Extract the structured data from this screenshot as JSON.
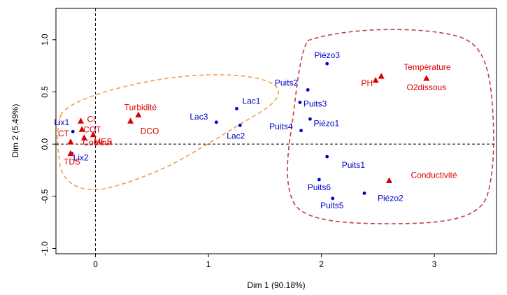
{
  "chart_data": {
    "type": "scatter",
    "title": "",
    "xlabel": "Dim 1 (90.18%)",
    "ylabel": "Dim 2 (5.49%)",
    "xlim": [
      -0.35,
      3.55
    ],
    "ylim": [
      -1.05,
      1.3
    ],
    "x_ticks": [
      0,
      1,
      2,
      3
    ],
    "x_tick_labels": [
      "0",
      "1",
      "2",
      "3"
    ],
    "y_ticks": [
      -1.0,
      -0.5,
      0.0,
      0.5,
      1.0
    ],
    "y_tick_labels": [
      "-1.0",
      "-0.5",
      "0.0",
      "0.5",
      "1.0"
    ],
    "grid": false,
    "reference_lines": {
      "x": 0,
      "y": 0,
      "style": "dashed"
    },
    "colors": {
      "sites": "#0000cc",
      "variables": "#dd0000",
      "group_left": "#f0a050",
      "group_right": "#c04040"
    },
    "series": [
      {
        "marker": "circle",
        "color": "#0000cc",
        "points": [
          {
            "label": "Lix1",
            "x": -0.2,
            "y": 0.12
          },
          {
            "label": "Lix2",
            "x": -0.21,
            "y": -0.09
          },
          {
            "label": "Lac1",
            "x": 1.25,
            "y": 0.34
          },
          {
            "label": "Lac2",
            "x": 1.28,
            "y": 0.18
          },
          {
            "label": "Lac3",
            "x": 1.07,
            "y": 0.21
          },
          {
            "label": "Puits2",
            "x": 1.88,
            "y": 0.52
          },
          {
            "label": "Puits3",
            "x": 1.81,
            "y": 0.4
          },
          {
            "label": "Puits4",
            "x": 1.82,
            "y": 0.13
          },
          {
            "label": "Piézo1",
            "x": 1.9,
            "y": 0.24
          },
          {
            "label": "Piézo3",
            "x": 2.05,
            "y": 0.77
          },
          {
            "label": "Puits1",
            "x": 2.05,
            "y": -0.12
          },
          {
            "label": "Puits6",
            "x": 1.98,
            "y": -0.34
          },
          {
            "label": "Puits5",
            "x": 2.1,
            "y": -0.52
          },
          {
            "label": "Piézo2",
            "x": 2.38,
            "y": -0.47
          }
        ]
      },
      {
        "marker": "triangle",
        "color": "#dd0000",
        "points": [
          {
            "label": "Cl",
            "x": -0.13,
            "y": 0.22
          },
          {
            "label": "COT",
            "x": -0.12,
            "y": 0.14
          },
          {
            "label": "MES",
            "x": -0.02,
            "y": 0.09
          },
          {
            "label": "CT",
            "x": -0.22,
            "y": 0.02
          },
          {
            "label": "Couleur",
            "x": -0.1,
            "y": 0.06
          },
          {
            "label": "TDS",
            "x": -0.22,
            "y": -0.09
          },
          {
            "label": "Turbidité",
            "x": 0.38,
            "y": 0.28
          },
          {
            "label": "DCO",
            "x": 0.31,
            "y": 0.22
          },
          {
            "label": "PH",
            "x": 2.48,
            "y": 0.61
          },
          {
            "label": "Température",
            "x": 2.53,
            "y": 0.65
          },
          {
            "label": "O2dissous",
            "x": 2.93,
            "y": 0.63
          },
          {
            "label": "Conductivité",
            "x": 2.6,
            "y": -0.35
          }
        ]
      }
    ]
  }
}
